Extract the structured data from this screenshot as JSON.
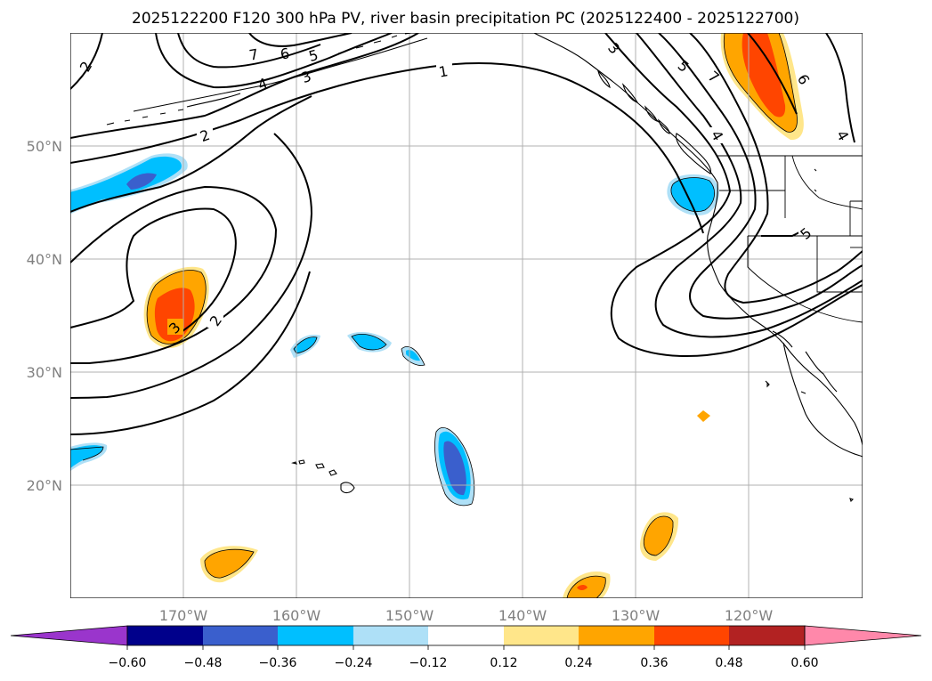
{
  "title": "2025122200 F120 300 hPa PV, river basin precipitation PC (2025122400 - 2025122700)",
  "map": {
    "projection": "PlateCarree",
    "lon_range": [
      -180,
      -110
    ],
    "lat_range": [
      10,
      60
    ],
    "gridlines": true,
    "lat_ticks": [
      {
        "value": 50,
        "label": "50°N"
      },
      {
        "value": 40,
        "label": "40°N"
      },
      {
        "value": 30,
        "label": "30°N"
      },
      {
        "value": 20,
        "label": "20°N"
      }
    ],
    "lon_ticks": [
      {
        "value": -170,
        "label": "170°W"
      },
      {
        "value": -160,
        "label": "160°W"
      },
      {
        "value": -150,
        "label": "150°W"
      },
      {
        "value": -140,
        "label": "140°W"
      },
      {
        "value": -130,
        "label": "130°W"
      },
      {
        "value": -120,
        "label": "120°W"
      }
    ],
    "pv_contour_labels": [
      "1",
      "2",
      "2",
      "2",
      "3",
      "3",
      "3",
      "4",
      "4",
      "4",
      "5",
      "5",
      "5",
      "6",
      "6",
      "7",
      "7"
    ]
  },
  "colorbar": {
    "extend": "both",
    "ticks": [
      "−0.60",
      "−0.48",
      "−0.36",
      "−0.24",
      "−0.12",
      "0.12",
      "0.24",
      "0.36",
      "0.48",
      "0.60"
    ],
    "colors": {
      "below": "#9a35cc",
      "c1": "#00008b",
      "c2": "#3a5fcd",
      "c3": "#00bfff",
      "c4": "#aee0f7",
      "c5": "#ffffff",
      "c6": "#ffe68a",
      "c7": "#ffa500",
      "c8": "#ff4500",
      "c9": "#b22222",
      "above": "#ff88aa"
    }
  },
  "shading_colors": {
    "light_blue": "#aee0f7",
    "blue": "#00bfff",
    "royal": "#3a5fcd",
    "yellow": "#ffe68a",
    "orange": "#ffa500",
    "red_orange": "#ff4500"
  }
}
